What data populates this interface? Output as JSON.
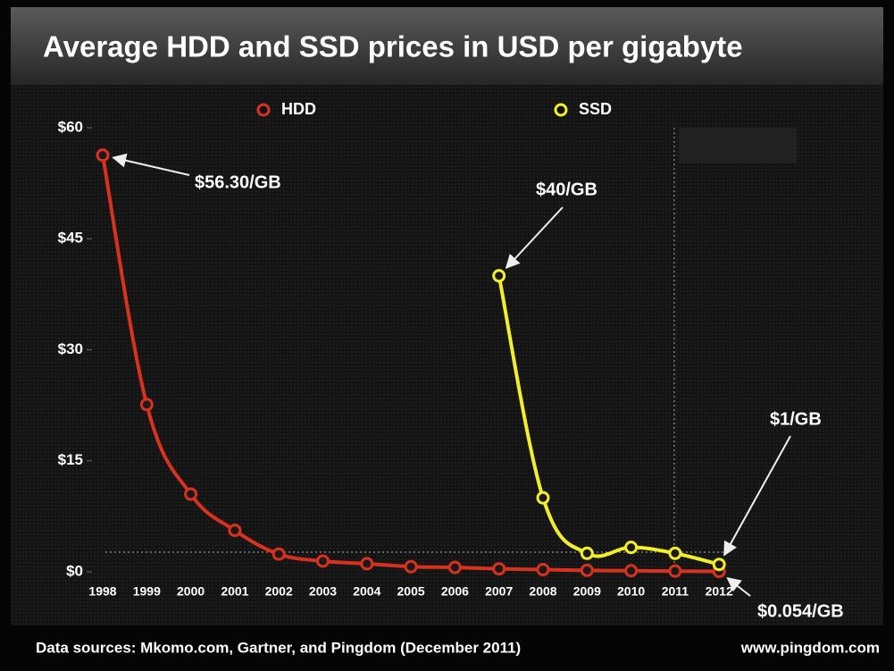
{
  "chart_data": {
    "type": "line",
    "title": "Average HDD and SSD prices in USD per gigabyte",
    "categories": [
      "1998",
      "1999",
      "2000",
      "2001",
      "2002",
      "2003",
      "2004",
      "2005",
      "2006",
      "2007",
      "2008",
      "2009",
      "2010",
      "2011",
      "2012"
    ],
    "series": [
      {
        "name": "HDD",
        "color": "#d8321e",
        "values": [
          56.3,
          22.6,
          10.5,
          5.6,
          2.4,
          1.45,
          1.1,
          0.7,
          0.6,
          0.4,
          0.3,
          0.2,
          0.15,
          0.1,
          0.054
        ]
      },
      {
        "name": "SSD",
        "color": "#f2ee2a",
        "values": [
          null,
          null,
          null,
          null,
          null,
          null,
          null,
          null,
          null,
          40,
          10,
          2.5,
          3.3,
          2.5,
          1
        ]
      }
    ],
    "ylim": [
      0,
      60
    ],
    "yticks": [
      {
        "value": 0,
        "label": "$0"
      },
      {
        "value": 15,
        "label": "$15"
      },
      {
        "value": 30,
        "label": "$30"
      },
      {
        "value": 45,
        "label": "$45"
      },
      {
        "value": 60,
        "label": "$60"
      }
    ],
    "annotations": [
      "$56.30/GB",
      "$40/GB",
      "$1/GB",
      "$0.054/GB"
    ],
    "source": "Data sources: Mkomo.com, Gartner, and Pingdom (December 2011)",
    "credit": "www.pingdom.com"
  }
}
